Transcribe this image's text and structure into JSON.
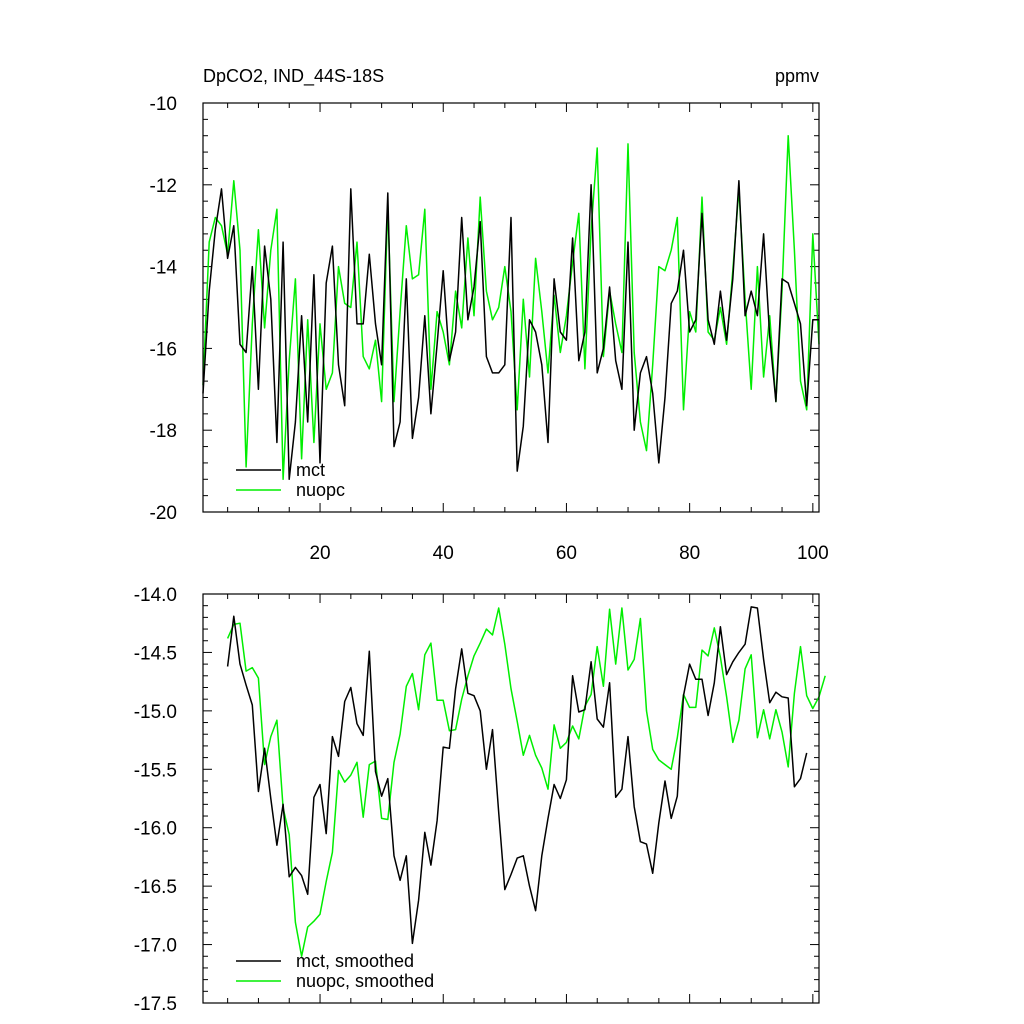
{
  "chart_data": [
    {
      "type": "line",
      "title_left": "DpCO2, IND_44S-18S",
      "title_right": "ppmv",
      "xlim": [
        1,
        101
      ],
      "ylim": [
        -20,
        -10
      ],
      "yticks": [
        -20,
        -18,
        -16,
        -14,
        -12,
        -10
      ],
      "ytick_labels": [
        "-20",
        "-18",
        "-16",
        "-14",
        "-12",
        "-10"
      ],
      "xticks": [
        20,
        40,
        60,
        80,
        100
      ],
      "xtick_labels": [
        "20",
        "40",
        "60",
        "80",
        "100"
      ],
      "legend_position": "bottom-left",
      "x_start": 1,
      "series": [
        {
          "name": "mct",
          "color": "#000000",
          "values": [
            -17.1,
            -14.6,
            -13.1,
            -12.1,
            -13.8,
            -13.0,
            -15.9,
            -16.1,
            -14.0,
            -17.0,
            -13.5,
            -14.8,
            -18.3,
            -13.4,
            -19.2,
            -17.8,
            -15.2,
            -17.8,
            -14.2,
            -18.8,
            -14.4,
            -13.5,
            -16.4,
            -17.4,
            -12.1,
            -15.4,
            -15.4,
            -13.7,
            -15.4,
            -16.4,
            -12.2,
            -18.4,
            -17.8,
            -14.3,
            -18.2,
            -17.2,
            -15.2,
            -17.6,
            -15.9,
            -14.1,
            -16.3,
            -15.6,
            -12.8,
            -15.3,
            -14.5,
            -12.9,
            -16.2,
            -16.6,
            -16.6,
            -16.4,
            -12.8,
            -19.0,
            -17.9,
            -15.3,
            -15.6,
            -16.4,
            -18.3,
            -14.3,
            -15.6,
            -15.8,
            -13.3,
            -16.3,
            -15.6,
            -12.0,
            -16.6,
            -16.0,
            -14.5,
            -16.3,
            -17.0,
            -13.4,
            -18.0,
            -16.6,
            -16.2,
            -17.1,
            -18.8,
            -17.2,
            -14.9,
            -14.6,
            -13.6,
            -15.6,
            -15.3,
            -12.7,
            -15.3,
            -15.9,
            -14.6,
            -15.8,
            -14.3,
            -11.9,
            -15.2,
            -14.6,
            -15.2,
            -13.2,
            -15.7,
            -17.3,
            -14.3,
            -14.4,
            -14.9,
            -15.4,
            -17.4,
            -15.3,
            -15.3
          ]
        },
        {
          "name": "nuopc",
          "color": "#00ee00",
          "values": [
            -16.9,
            -13.4,
            -12.8,
            -13.0,
            -13.7,
            -11.9,
            -13.6,
            -18.9,
            -15.4,
            -13.1,
            -15.5,
            -13.6,
            -12.6,
            -19.2,
            -16.3,
            -14.3,
            -18.7,
            -15.3,
            -18.3,
            -15.4,
            -17.0,
            -16.6,
            -14.0,
            -14.9,
            -15.0,
            -13.4,
            -16.2,
            -16.5,
            -15.8,
            -17.3,
            -12.5,
            -17.3,
            -15.1,
            -13.0,
            -14.3,
            -14.2,
            -12.6,
            -17.0,
            -15.1,
            -15.6,
            -16.4,
            -14.6,
            -15.5,
            -13.3,
            -15.2,
            -12.3,
            -14.6,
            -15.3,
            -15.0,
            -14.0,
            -15.1,
            -17.5,
            -14.8,
            -16.7,
            -13.8,
            -15.1,
            -16.6,
            -14.7,
            -16.1,
            -15.2,
            -13.9,
            -12.7,
            -16.5,
            -13.1,
            -11.1,
            -16.2,
            -14.6,
            -15.4,
            -16.1,
            -11.0,
            -16.1,
            -17.8,
            -18.5,
            -16.4,
            -14.0,
            -14.1,
            -13.6,
            -12.8,
            -17.5,
            -15.1,
            -15.6,
            -12.3,
            -15.6,
            -15.8,
            -15.0,
            -15.9,
            -14.1,
            -12.1,
            -14.8,
            -17.0,
            -14.0,
            -16.7,
            -15.2,
            -17.3,
            -14.6,
            -10.8,
            -13.6,
            -16.8,
            -17.5,
            -13.2,
            -15.9
          ]
        }
      ]
    },
    {
      "type": "line",
      "xlim": [
        1,
        101
      ],
      "ylim": [
        -17.5,
        -14.0
      ],
      "yticks": [
        -17.5,
        -17.0,
        -16.5,
        -16.0,
        -15.5,
        -15.0,
        -14.5,
        -14.0
      ],
      "ytick_labels": [
        "-17.5",
        "-17.0",
        "-16.5",
        "-16.0",
        "-15.5",
        "-15.0",
        "-14.5",
        "-14.0"
      ],
      "xticks": [
        20,
        40,
        60,
        80,
        100
      ],
      "legend_position": "bottom-left",
      "x_start": 5,
      "series": [
        {
          "name": "mct, smoothed",
          "color": "#000000",
          "values": [
            -14.62,
            -14.19,
            -14.6,
            -14.78,
            -14.95,
            -15.69,
            -15.32,
            -15.75,
            -16.15,
            -15.8,
            -16.42,
            -16.34,
            -16.41,
            -16.57,
            -15.74,
            -15.63,
            -16.05,
            -15.22,
            -15.39,
            -14.92,
            -14.8,
            -15.11,
            -15.21,
            -14.49,
            -15.52,
            -15.73,
            -15.58,
            -16.24,
            -16.45,
            -16.24,
            -16.99,
            -16.62,
            -16.04,
            -16.32,
            -15.94,
            -15.31,
            -15.32,
            -14.81,
            -14.47,
            -14.85,
            -14.87,
            -15.0,
            -15.5,
            -15.16,
            -15.87,
            -16.53,
            -16.4,
            -16.26,
            -16.24,
            -16.5,
            -16.71,
            -16.24,
            -15.92,
            -15.63,
            -15.75,
            -15.59,
            -14.7,
            -15.01,
            -14.99,
            -14.58,
            -15.07,
            -15.14,
            -14.76,
            -15.74,
            -15.67,
            -15.22,
            -15.82,
            -16.12,
            -16.14,
            -16.39,
            -15.96,
            -15.6,
            -15.92,
            -15.73,
            -14.87,
            -14.6,
            -14.73,
            -14.73,
            -15.04,
            -14.76,
            -14.28,
            -14.69,
            -14.58,
            -14.5,
            -14.43,
            -14.11,
            -14.12,
            -14.56,
            -14.93,
            -14.84,
            -14.88,
            -14.89,
            -15.65,
            -15.58,
            -15.36
          ]
        },
        {
          "name": "nuopc, smoothed",
          "color": "#00ee00",
          "values": [
            -14.38,
            -14.26,
            -14.25,
            -14.66,
            -14.63,
            -14.72,
            -15.46,
            -15.22,
            -15.08,
            -15.83,
            -16.06,
            -16.81,
            -17.1,
            -16.85,
            -16.8,
            -16.74,
            -16.46,
            -16.21,
            -15.51,
            -15.61,
            -15.55,
            -15.44,
            -15.91,
            -15.46,
            -15.43,
            -15.92,
            -15.93,
            -15.44,
            -15.2,
            -14.79,
            -14.68,
            -14.99,
            -14.52,
            -14.42,
            -14.91,
            -14.91,
            -15.17,
            -15.16,
            -14.9,
            -14.7,
            -14.53,
            -14.42,
            -14.3,
            -14.35,
            -14.12,
            -14.43,
            -14.81,
            -15.09,
            -15.38,
            -15.21,
            -15.38,
            -15.49,
            -15.67,
            -15.12,
            -15.32,
            -15.27,
            -15.13,
            -15.24,
            -14.96,
            -14.86,
            -14.45,
            -14.79,
            -14.13,
            -14.6,
            -14.12,
            -14.65,
            -14.56,
            -14.21,
            -15.0,
            -15.33,
            -15.42,
            -15.46,
            -15.5,
            -15.23,
            -14.86,
            -14.97,
            -14.97,
            -14.48,
            -14.53,
            -14.29,
            -14.54,
            -14.88,
            -15.27,
            -15.08,
            -14.64,
            -14.52,
            -15.23,
            -14.99,
            -15.24,
            -14.99,
            -15.18,
            -15.48,
            -14.85,
            -14.45,
            -14.87,
            -14.98,
            -14.88,
            -14.7
          ]
        }
      ]
    }
  ]
}
